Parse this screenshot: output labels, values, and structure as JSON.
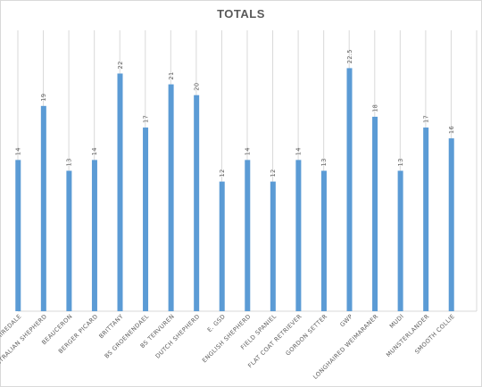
{
  "chart_data": {
    "type": "bar",
    "title": "TOTALS",
    "xlabel": "",
    "ylabel": "",
    "ylim": [
      0,
      26
    ],
    "grid": true,
    "legend": "none",
    "bar_color": "#5b9bd5",
    "grid_color": "#d9d9d9",
    "categories": [
      "AIREDALE",
      "AUSTRALIAN SHEPHERD",
      "BEAUCERON",
      "BERGER PICARD",
      "BRITTANY",
      "BS GROENENDAEL",
      "BS TERVUREN",
      "DUTCH SHEPHERD",
      "E. GSD",
      "ENGLISH SHEPHERD",
      "FIELD SPANIEL",
      "FLAT COAT RETRIEVER",
      "GORDON SETTER",
      "GWP",
      "LONGHAIRED WEIMARANER",
      "MUDI",
      "MUNSTERLANDER",
      "SMOOTH COLLIE"
    ],
    "values": [
      14,
      19,
      13,
      14,
      22,
      17,
      21,
      20,
      12,
      14,
      12,
      14,
      13,
      22.5,
      18,
      13,
      17,
      16
    ],
    "data_labels": [
      "14",
      "19",
      "13",
      "14",
      "22",
      "17",
      "21",
      "20",
      "12",
      "14",
      "12",
      "14",
      "13",
      "22.5",
      "18",
      "13",
      "17",
      "16"
    ]
  }
}
